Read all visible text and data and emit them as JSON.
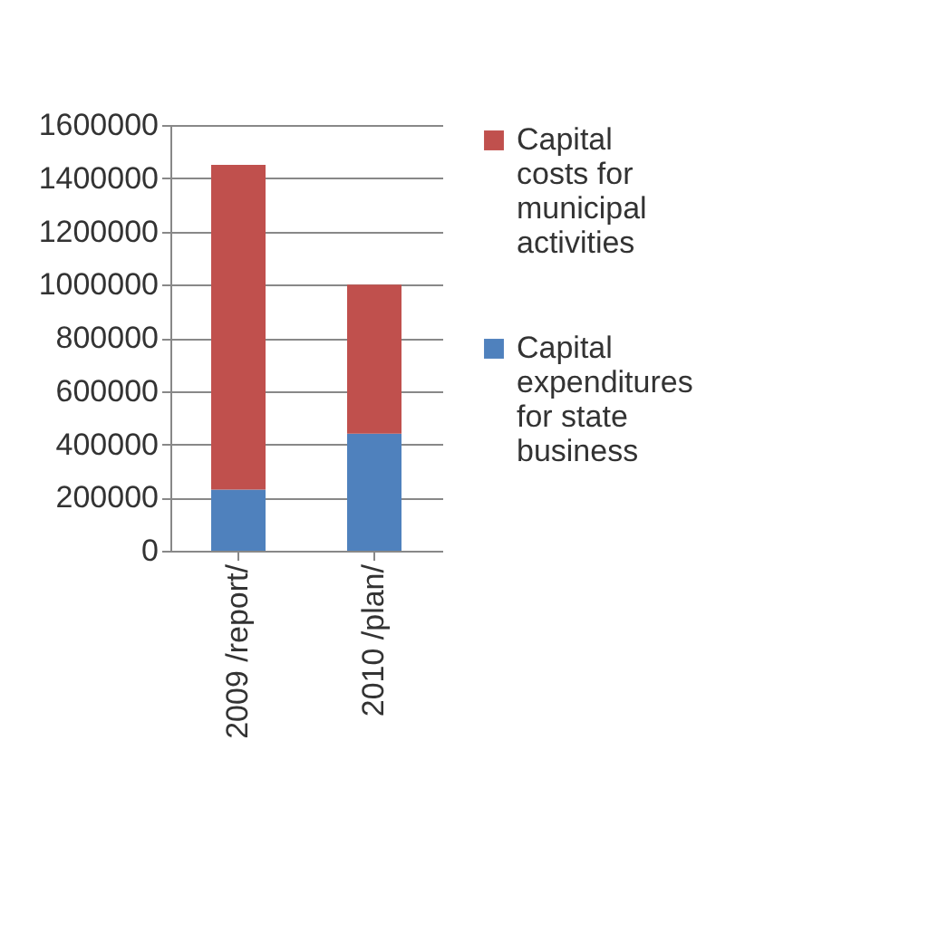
{
  "chart_data": {
    "type": "bar",
    "stacked": true,
    "categories": [
      "2009 /report/",
      "2010 /plan/"
    ],
    "series": [
      {
        "name": "Capital expenditures for state business",
        "color": "#4f81bd",
        "values": [
          230000,
          440000
        ]
      },
      {
        "name": "Capital costs for municipal activities",
        "color": "#c0504d",
        "values": [
          1220000,
          560000
        ]
      }
    ],
    "ylim": [
      0,
      1600000
    ],
    "yticks": [
      0,
      200000,
      400000,
      600000,
      800000,
      1000000,
      1200000,
      1400000,
      1600000
    ],
    "grid": "y",
    "legend": "right"
  }
}
